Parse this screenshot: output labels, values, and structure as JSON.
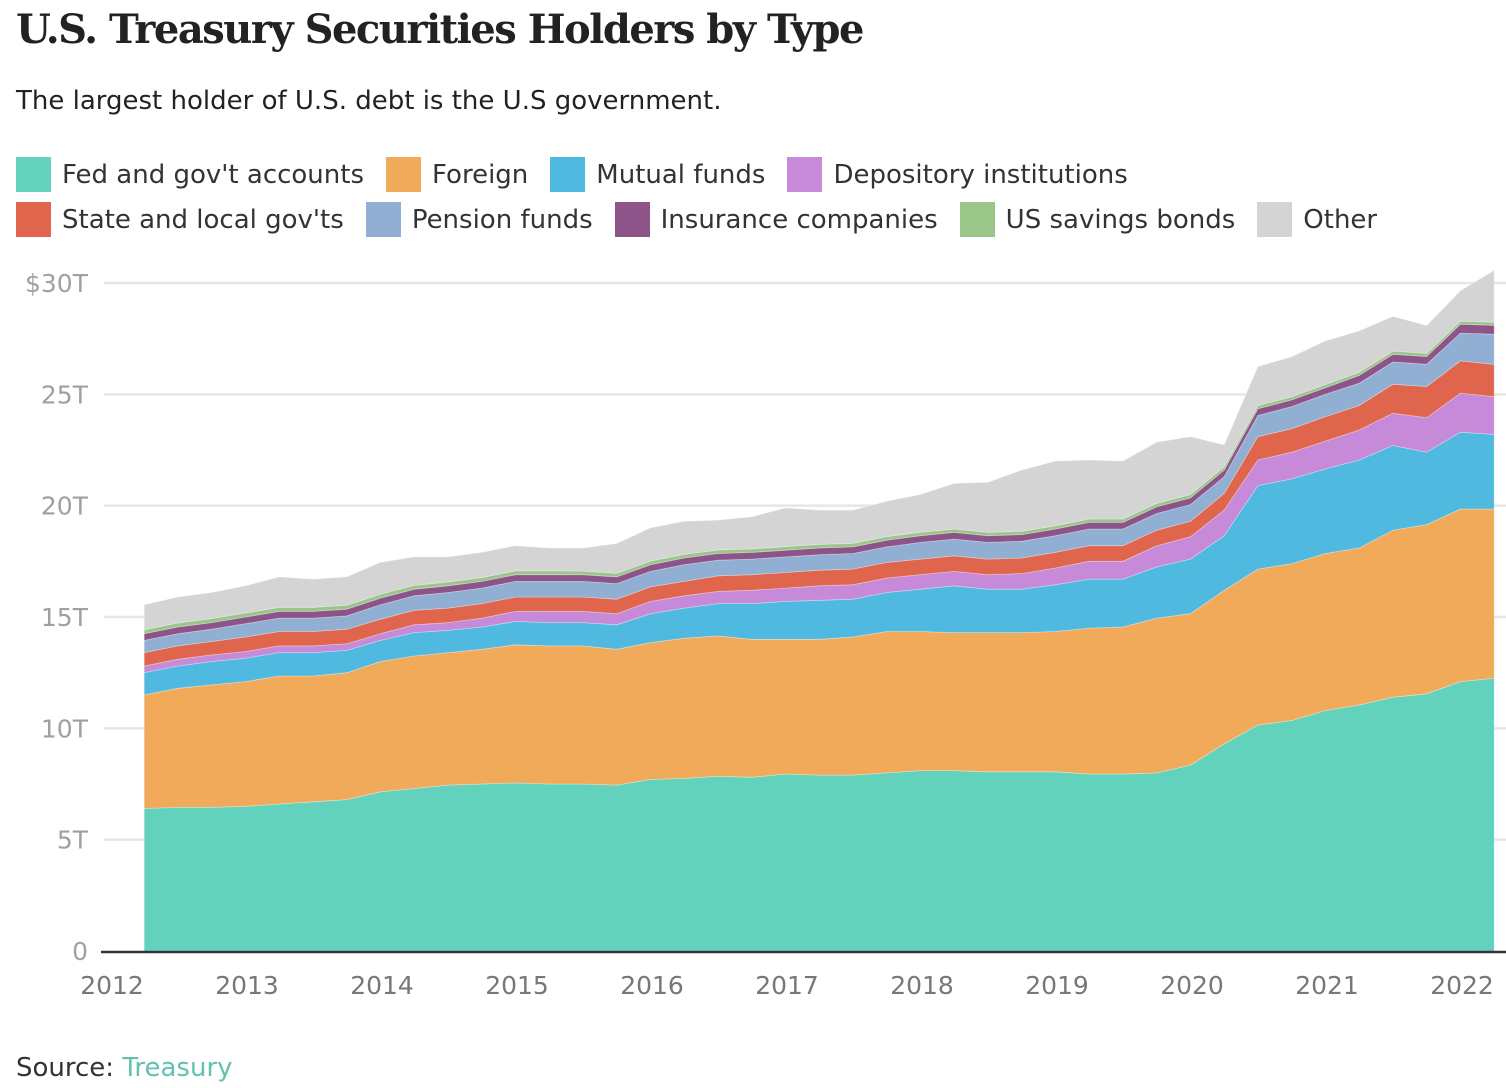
{
  "header": {
    "title": "U.S. Treasury Securities Holders by Type",
    "subtitle": "The largest holder of U.S. debt is the U.S government."
  },
  "legend": {
    "rows": [
      [
        0,
        1,
        2,
        3
      ],
      [
        4,
        5,
        6,
        7,
        8
      ]
    ]
  },
  "footer": {
    "source_prefix": "Source: ",
    "source_link": "Treasury"
  },
  "chart_data": {
    "type": "area",
    "stacked": true,
    "title": "U.S. Treasury Securities Holders by Type",
    "subtitle": "The largest holder of U.S. debt is the U.S government.",
    "xlabel": "",
    "ylabel": "",
    "ylim": [
      0,
      30
    ],
    "xlim": [
      2012,
      2022.25
    ],
    "y_ticks": [
      {
        "value": 0,
        "label": "0"
      },
      {
        "value": 5,
        "label": "5T"
      },
      {
        "value": 10,
        "label": "10T"
      },
      {
        "value": 15,
        "label": "15T"
      },
      {
        "value": 20,
        "label": "20T"
      },
      {
        "value": 25,
        "label": "25T"
      },
      {
        "value": 30,
        "label": "$30T"
      }
    ],
    "x_ticks": [
      {
        "value": 2012,
        "label": "2012"
      },
      {
        "value": 2013,
        "label": "2013"
      },
      {
        "value": 2014,
        "label": "2014"
      },
      {
        "value": 2015,
        "label": "2015"
      },
      {
        "value": 2016,
        "label": "2016"
      },
      {
        "value": 2017,
        "label": "2017"
      },
      {
        "value": 2018,
        "label": "2018"
      },
      {
        "value": 2019,
        "label": "2019"
      },
      {
        "value": 2020,
        "label": "2020"
      },
      {
        "value": 2021,
        "label": "2021"
      },
      {
        "value": 2022,
        "label": "2022"
      }
    ],
    "grid": true,
    "legend_position": "top",
    "x": [
      2012.12,
      2012.37,
      2012.62,
      2012.87,
      2013.12,
      2013.37,
      2013.62,
      2013.87,
      2014.12,
      2014.37,
      2014.62,
      2014.87,
      2015.12,
      2015.37,
      2015.62,
      2015.87,
      2016.12,
      2016.37,
      2016.62,
      2016.87,
      2017.12,
      2017.37,
      2017.62,
      2017.87,
      2018.12,
      2018.37,
      2018.62,
      2018.87,
      2019.12,
      2019.37,
      2019.62,
      2019.87,
      2020.12,
      2020.37,
      2020.62,
      2020.87,
      2021.12,
      2021.37,
      2021.62,
      2021.87,
      2022.12
    ],
    "series": [
      {
        "name": "Fed and gov't accounts",
        "color": "#62d2bc",
        "values": [
          6.4,
          6.45,
          6.45,
          6.5,
          6.6,
          6.7,
          6.8,
          7.15,
          7.3,
          7.45,
          7.5,
          7.55,
          7.5,
          7.5,
          7.45,
          7.7,
          7.75,
          7.85,
          7.8,
          7.95,
          7.9,
          7.9,
          8.0,
          8.1,
          8.1,
          8.05,
          8.05,
          8.05,
          7.95,
          7.95,
          8.0,
          8.35,
          9.3,
          10.15,
          10.35,
          10.8,
          11.05,
          11.4,
          11.55,
          12.1,
          12.25
        ]
      },
      {
        "name": "Foreign",
        "color": "#f1aa5a",
        "values": [
          5.1,
          5.35,
          5.5,
          5.6,
          5.75,
          5.65,
          5.7,
          5.85,
          5.95,
          5.95,
          6.05,
          6.2,
          6.2,
          6.2,
          6.1,
          6.15,
          6.3,
          6.3,
          6.2,
          6.05,
          6.1,
          6.2,
          6.35,
          6.25,
          6.2,
          6.25,
          6.25,
          6.3,
          6.55,
          6.6,
          6.95,
          6.8,
          6.9,
          7.0,
          7.05,
          7.05,
          7.05,
          7.5,
          7.6,
          7.75,
          7.6
        ]
      },
      {
        "name": "Mutual funds",
        "color": "#50b9e0",
        "values": [
          1.0,
          1.0,
          1.05,
          1.05,
          1.05,
          1.05,
          1.0,
          0.95,
          1.05,
          1.0,
          1.0,
          1.05,
          1.05,
          1.05,
          1.1,
          1.3,
          1.35,
          1.45,
          1.6,
          1.7,
          1.75,
          1.7,
          1.75,
          1.9,
          2.1,
          1.95,
          1.95,
          2.1,
          2.2,
          2.15,
          2.3,
          2.45,
          2.45,
          3.75,
          3.8,
          3.8,
          3.95,
          3.8,
          3.25,
          3.45,
          3.35
        ]
      },
      {
        "name": "Depository institutions",
        "color": "#c68ad9",
        "values": [
          0.3,
          0.3,
          0.3,
          0.3,
          0.3,
          0.3,
          0.3,
          0.3,
          0.35,
          0.35,
          0.4,
          0.45,
          0.5,
          0.5,
          0.5,
          0.55,
          0.55,
          0.55,
          0.6,
          0.6,
          0.65,
          0.65,
          0.65,
          0.65,
          0.65,
          0.65,
          0.7,
          0.75,
          0.8,
          0.8,
          0.95,
          1.0,
          1.15,
          1.15,
          1.2,
          1.25,
          1.35,
          1.45,
          1.55,
          1.75,
          1.7
        ]
      },
      {
        "name": "State and local gov'ts",
        "color": "#df664c",
        "values": [
          0.6,
          0.6,
          0.6,
          0.65,
          0.65,
          0.65,
          0.65,
          0.65,
          0.65,
          0.65,
          0.65,
          0.65,
          0.65,
          0.65,
          0.65,
          0.65,
          0.65,
          0.7,
          0.7,
          0.7,
          0.7,
          0.7,
          0.7,
          0.7,
          0.7,
          0.7,
          0.7,
          0.7,
          0.7,
          0.7,
          0.7,
          0.7,
          0.75,
          1.05,
          1.05,
          1.1,
          1.1,
          1.3,
          1.4,
          1.45,
          1.45
        ]
      },
      {
        "name": "Pension funds",
        "color": "#90afd3",
        "values": [
          0.55,
          0.55,
          0.55,
          0.6,
          0.6,
          0.6,
          0.6,
          0.65,
          0.65,
          0.7,
          0.7,
          0.7,
          0.7,
          0.7,
          0.7,
          0.7,
          0.75,
          0.7,
          0.7,
          0.7,
          0.7,
          0.7,
          0.7,
          0.75,
          0.75,
          0.75,
          0.75,
          0.75,
          0.75,
          0.75,
          0.75,
          0.75,
          0.75,
          0.95,
          1.0,
          1.0,
          1.0,
          1.0,
          1.0,
          1.25,
          1.35
        ]
      },
      {
        "name": "Insurance companies",
        "color": "#8c5489",
        "values": [
          0.3,
          0.3,
          0.3,
          0.3,
          0.3,
          0.3,
          0.3,
          0.3,
          0.3,
          0.3,
          0.3,
          0.3,
          0.3,
          0.3,
          0.3,
          0.3,
          0.3,
          0.3,
          0.3,
          0.3,
          0.3,
          0.3,
          0.3,
          0.3,
          0.3,
          0.3,
          0.3,
          0.3,
          0.3,
          0.3,
          0.3,
          0.3,
          0.3,
          0.3,
          0.3,
          0.3,
          0.35,
          0.35,
          0.35,
          0.4,
          0.4
        ]
      },
      {
        "name": "US savings bonds",
        "color": "#9ac689",
        "values": [
          0.18,
          0.18,
          0.18,
          0.18,
          0.18,
          0.18,
          0.18,
          0.17,
          0.17,
          0.17,
          0.17,
          0.17,
          0.17,
          0.16,
          0.16,
          0.16,
          0.16,
          0.16,
          0.16,
          0.16,
          0.16,
          0.16,
          0.16,
          0.16,
          0.15,
          0.15,
          0.15,
          0.15,
          0.15,
          0.15,
          0.15,
          0.15,
          0.15,
          0.15,
          0.14,
          0.14,
          0.14,
          0.14,
          0.14,
          0.14,
          0.14
        ]
      },
      {
        "name": "Other",
        "color": "#d4d4d4",
        "values": [
          1.12,
          1.17,
          1.17,
          1.22,
          1.37,
          1.27,
          1.27,
          1.43,
          1.28,
          1.13,
          1.13,
          1.13,
          1.03,
          1.04,
          1.34,
          1.49,
          1.49,
          1.34,
          1.44,
          1.74,
          1.54,
          1.49,
          1.59,
          1.69,
          2.05,
          2.25,
          2.75,
          2.9,
          2.65,
          2.6,
          2.75,
          2.6,
          0.98,
          1.75,
          1.8,
          1.96,
          1.86,
          1.56,
          1.25,
          1.36,
          2.33
        ]
      }
    ]
  }
}
